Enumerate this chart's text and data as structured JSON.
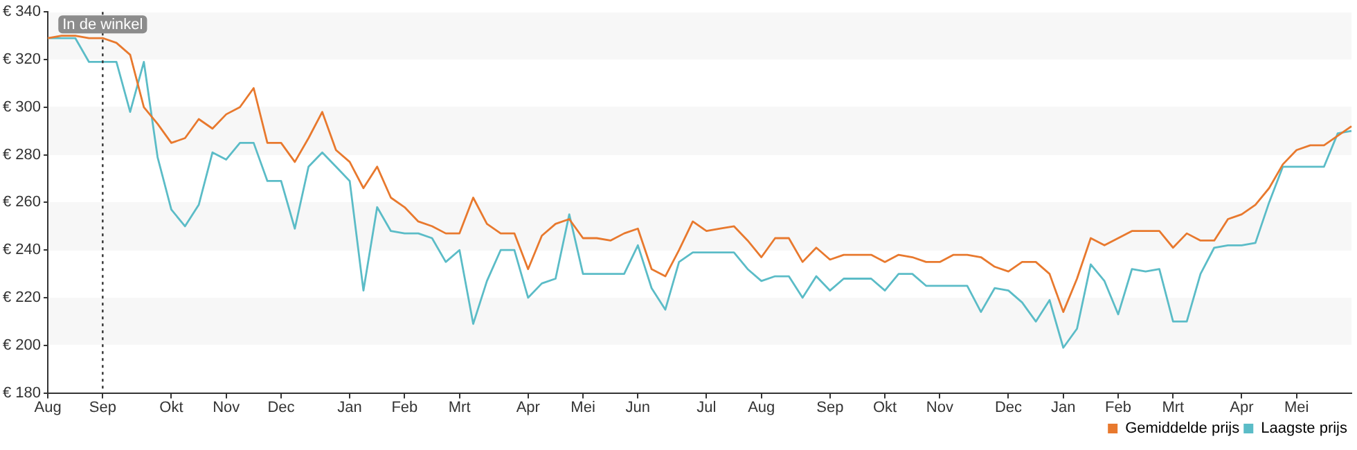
{
  "chart_data": {
    "type": "line",
    "marker": "none",
    "line_style": "solid",
    "legend": "bottom right",
    "grid": false,
    "categories": [
      "Aug",
      null,
      null,
      null,
      "Sep",
      null,
      null,
      null,
      null,
      "Okt",
      null,
      null,
      null,
      "Nov",
      null,
      null,
      null,
      "Dec",
      null,
      null,
      null,
      null,
      "Jan",
      null,
      null,
      null,
      "Feb",
      null,
      null,
      null,
      "Mrt",
      null,
      null,
      null,
      null,
      "Apr",
      null,
      null,
      null,
      "Mei",
      null,
      null,
      null,
      "Jun",
      null,
      null,
      null,
      null,
      "Jul",
      null,
      null,
      null,
      "Aug",
      null,
      null,
      null,
      null,
      "Sep",
      null,
      null,
      null,
      "Okt",
      null,
      null,
      null,
      "Nov",
      null,
      null,
      null,
      null,
      "Dec",
      null,
      null,
      null,
      "Jan",
      null,
      null,
      null,
      "Feb",
      null,
      null,
      null,
      "Mrt",
      null,
      null,
      null,
      null,
      "Apr",
      null,
      null,
      null,
      "Mei",
      null,
      null,
      null,
      null
    ],
    "ylim": [
      180,
      340
    ],
    "yticks": [
      {
        "value": 180,
        "label": "€ 180"
      },
      {
        "value": 200,
        "label": "€ 200"
      },
      {
        "value": 220,
        "label": "€ 220"
      },
      {
        "value": 240,
        "label": "€ 240"
      },
      {
        "value": 260,
        "label": "€ 260"
      },
      {
        "value": 280,
        "label": "€ 280"
      },
      {
        "value": 300,
        "label": "€ 300"
      },
      {
        "value": 320,
        "label": "€ 320"
      },
      {
        "value": 340,
        "label": "€ 340"
      }
    ],
    "ref_lines": [
      {
        "axis": "x",
        "value": "Sep",
        "label": "In de winkel",
        "line_style": "dotted",
        "color": "#333333"
      }
    ],
    "series": [
      {
        "name": "Gemiddelde prijs",
        "color": "#e8792e",
        "values": [
          329,
          330,
          330,
          329,
          329,
          327,
          322,
          300,
          293,
          285,
          287,
          295,
          291,
          297,
          300,
          308,
          285,
          285,
          277,
          287,
          298,
          282,
          277,
          266,
          275,
          262,
          258,
          252,
          250,
          247,
          247,
          262,
          251,
          247,
          247,
          232,
          246,
          251,
          253,
          245,
          245,
          244,
          247,
          249,
          232,
          229,
          240,
          252,
          248,
          249,
          250,
          244,
          237,
          245,
          245,
          235,
          241,
          236,
          238,
          238,
          238,
          235,
          238,
          237,
          235,
          235,
          238,
          238,
          237,
          233,
          231,
          235,
          235,
          230,
          214,
          228,
          245,
          242,
          245,
          248,
          248,
          248,
          241,
          247,
          244,
          244,
          253,
          255,
          259,
          266,
          276,
          282,
          284,
          284,
          288,
          292
        ]
      },
      {
        "name": "Laagste prijs",
        "color": "#5bbcc7",
        "values": [
          329,
          329,
          329,
          319,
          319,
          319,
          298,
          319,
          279,
          257,
          250,
          259,
          281,
          278,
          285,
          285,
          269,
          269,
          249,
          275,
          281,
          275,
          269,
          223,
          258,
          248,
          247,
          247,
          245,
          235,
          240,
          209,
          227,
          240,
          240,
          220,
          226,
          228,
          255,
          230,
          230,
          230,
          230,
          242,
          224,
          215,
          235,
          239,
          239,
          239,
          239,
          232,
          227,
          229,
          229,
          220,
          229,
          223,
          228,
          228,
          228,
          223,
          230,
          230,
          225,
          225,
          225,
          225,
          214,
          224,
          223,
          218,
          210,
          219,
          199,
          207,
          234,
          227,
          213,
          232,
          231,
          232,
          210,
          210,
          230,
          241,
          242,
          242,
          243,
          260,
          275,
          275,
          275,
          275,
          289,
          290
        ]
      }
    ]
  }
}
